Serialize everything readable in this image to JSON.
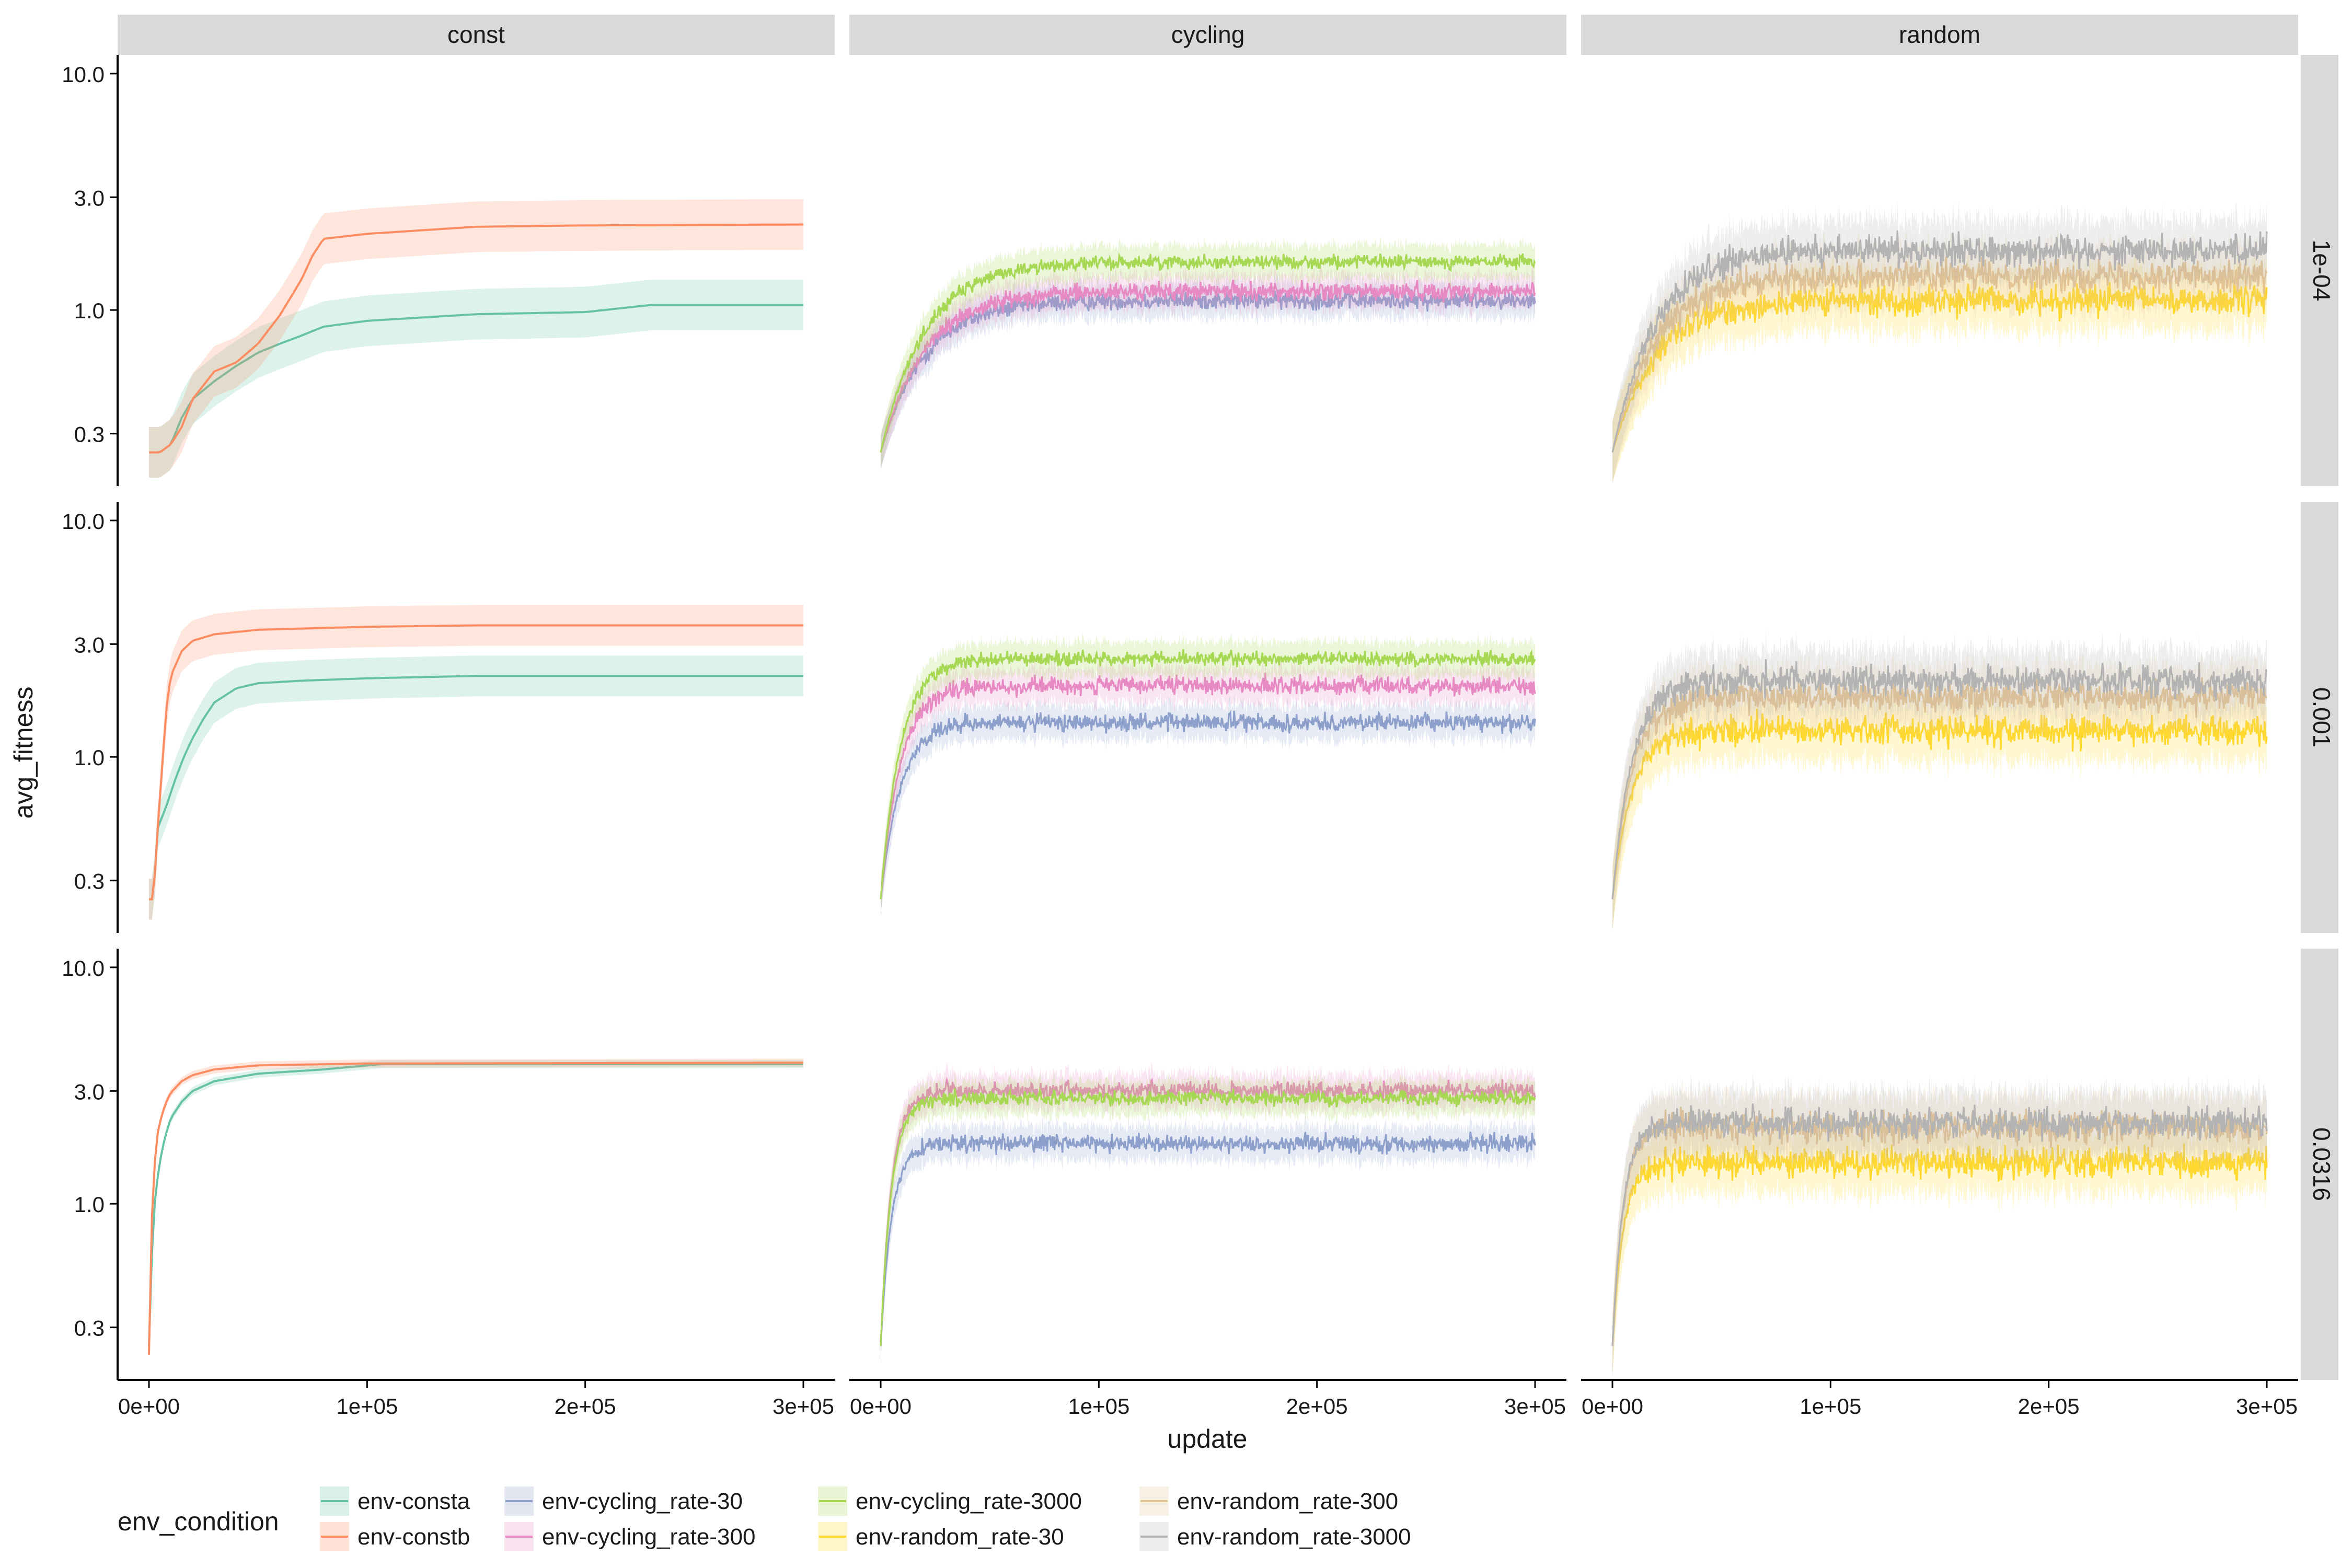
{
  "chart_data": {
    "type": "line",
    "xlabel": "update",
    "ylabel": "avg_fitness",
    "y_scale": "log10",
    "xlim": [
      0,
      300000
    ],
    "ylim": [
      0.18,
      12
    ],
    "x_ticks": [
      0,
      100000,
      200000,
      300000
    ],
    "x_tick_labels": [
      "0e+00",
      "1e+05",
      "2e+05",
      "3e+05"
    ],
    "y_ticks": [
      0.3,
      1.0,
      3.0,
      10.0
    ],
    "y_tick_labels": [
      "0.3",
      "1.0",
      "3.0",
      "10.0"
    ],
    "facet_columns": [
      "const",
      "cycling",
      "random"
    ],
    "facet_rows": [
      "1e-04",
      "0.001",
      "0.0316"
    ],
    "legend": {
      "title": "env_condition",
      "position": "bottom",
      "entries": [
        {
          "name": "env-consta",
          "color": "#66c2a5"
        },
        {
          "name": "env-constb",
          "color": "#fc8d62"
        },
        {
          "name": "env-cycling_rate-30",
          "color": "#8da0cb"
        },
        {
          "name": "env-cycling_rate-300",
          "color": "#e78ac3"
        },
        {
          "name": "env-cycling_rate-3000",
          "color": "#a6d854"
        },
        {
          "name": "env-random_rate-30",
          "color": "#ffd92f"
        },
        {
          "name": "env-random_rate-300",
          "color": "#e5c494"
        },
        {
          "name": "env-random_rate-3000",
          "color": "#b3b3b3"
        }
      ]
    },
    "ribbon": "shaded band around each mean line",
    "panels": [
      {
        "col": "const",
        "row": "1e-04",
        "series": [
          {
            "name": "env-consta",
            "plateau": 1.05,
            "x": [
              0,
              5000,
              10000,
              15000,
              20000,
              30000,
              40000,
              50000,
              60000,
              70000,
              80000,
              100000,
              150000,
              200000,
              230000,
              300000
            ],
            "y": [
              0.25,
              0.25,
              0.27,
              0.35,
              0.42,
              0.5,
              0.58,
              0.66,
              0.72,
              0.78,
              0.85,
              0.9,
              0.96,
              0.98,
              1.05,
              1.05
            ]
          },
          {
            "name": "env-constb",
            "plateau": 2.3,
            "x": [
              0,
              5000,
              10000,
              15000,
              20000,
              30000,
              40000,
              50000,
              60000,
              70000,
              75000,
              80000,
              100000,
              150000,
              200000,
              300000
            ],
            "y": [
              0.25,
              0.25,
              0.27,
              0.32,
              0.42,
              0.55,
              0.6,
              0.72,
              0.95,
              1.35,
              1.7,
              2.0,
              2.1,
              2.25,
              2.28,
              2.3
            ]
          }
        ]
      },
      {
        "col": "cycling",
        "row": "1e-04",
        "series": [
          {
            "name": "env-cycling_rate-30",
            "plateau": 1.1
          },
          {
            "name": "env-cycling_rate-300",
            "plateau": 1.2
          },
          {
            "name": "env-cycling_rate-3000",
            "plateau": 1.6
          }
        ]
      },
      {
        "col": "random",
        "row": "1e-04",
        "series": [
          {
            "name": "env-random_rate-30",
            "plateau": 1.1
          },
          {
            "name": "env-random_rate-300",
            "plateau": 1.4
          },
          {
            "name": "env-random_rate-3000",
            "plateau": 1.8
          }
        ]
      },
      {
        "col": "const",
        "row": "0.001",
        "series": [
          {
            "name": "env-consta",
            "plateau": 2.2,
            "x": [
              0,
              2000,
              4000,
              8000,
              12000,
              16000,
              20000,
              25000,
              30000,
              40000,
              50000,
              70000,
              100000,
              150000,
              300000
            ],
            "y": [
              0.25,
              0.25,
              0.5,
              0.62,
              0.8,
              1.0,
              1.2,
              1.45,
              1.7,
              1.95,
              2.05,
              2.1,
              2.15,
              2.2,
              2.2
            ]
          },
          {
            "name": "env-constb",
            "plateau": 3.6,
            "x": [
              0,
              2000,
              4000,
              6000,
              8000,
              10000,
              15000,
              20000,
              30000,
              50000,
              100000,
              150000,
              300000
            ],
            "y": [
              0.25,
              0.25,
              0.5,
              0.9,
              1.6,
              2.2,
              2.8,
              3.1,
              3.3,
              3.45,
              3.55,
              3.6,
              3.6
            ]
          }
        ]
      },
      {
        "col": "cycling",
        "row": "0.001",
        "series": [
          {
            "name": "env-cycling_rate-30",
            "plateau": 1.4
          },
          {
            "name": "env-cycling_rate-300",
            "plateau": 2.0
          },
          {
            "name": "env-cycling_rate-3000",
            "plateau": 2.6
          }
        ]
      },
      {
        "col": "random",
        "row": "0.001",
        "series": [
          {
            "name": "env-random_rate-30",
            "plateau": 1.3
          },
          {
            "name": "env-random_rate-300",
            "plateau": 1.8
          },
          {
            "name": "env-random_rate-3000",
            "plateau": 2.1
          }
        ]
      },
      {
        "col": "const",
        "row": "0.0316",
        "series": [
          {
            "name": "env-consta",
            "plateau": 3.9,
            "x": [
              0,
              1000,
              2000,
              4000,
              6000,
              8000,
              10000,
              15000,
              20000,
              30000,
              50000,
              80000,
              107000,
              300000
            ],
            "y": [
              0.25,
              0.5,
              0.9,
              1.3,
              1.7,
              2.0,
              2.3,
              2.7,
              3.0,
              3.3,
              3.55,
              3.7,
              3.9,
              3.9
            ]
          },
          {
            "name": "env-constb",
            "plateau": 3.95,
            "x": [
              0,
              1000,
              2000,
              4000,
              6000,
              8000,
              10000,
              15000,
              20000,
              30000,
              50000,
              100000,
              300000
            ],
            "y": [
              0.23,
              0.7,
              1.3,
              2.0,
              2.4,
              2.7,
              2.95,
              3.3,
              3.5,
              3.7,
              3.85,
              3.92,
              3.95
            ]
          }
        ]
      },
      {
        "col": "cycling",
        "row": "0.0316",
        "series": [
          {
            "name": "env-cycling_rate-30",
            "plateau": 1.8
          },
          {
            "name": "env-cycling_rate-300",
            "plateau": 3.0
          },
          {
            "name": "env-cycling_rate-3000",
            "plateau": 2.8
          }
        ]
      },
      {
        "col": "random",
        "row": "0.0316",
        "series": [
          {
            "name": "env-random_rate-30",
            "plateau": 1.5
          },
          {
            "name": "env-random_rate-300",
            "plateau": 2.1
          },
          {
            "name": "env-random_rate-3000",
            "plateau": 2.2
          }
        ]
      }
    ]
  }
}
